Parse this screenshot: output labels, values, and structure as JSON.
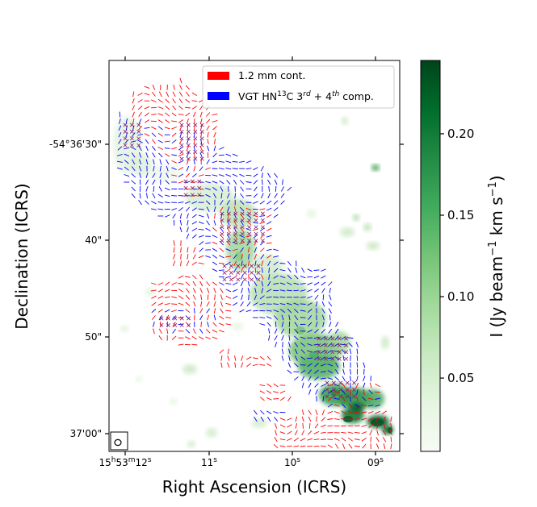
{
  "chart_data": {
    "type": "heatmap",
    "title": "",
    "xlabel": "Right Ascension (ICRS)",
    "ylabel": "Declination (ICRS)",
    "x_ticks": [
      {
        "pre": "15",
        "h": "h",
        "mid": "53",
        "m": "m",
        "post": "12",
        "s": "s"
      },
      {
        "pre": "",
        "h": "",
        "mid": "",
        "m": "",
        "post": "11",
        "s": "s"
      },
      {
        "pre": "",
        "h": "",
        "mid": "",
        "m": "",
        "post": "10",
        "s": "s"
      },
      {
        "pre": "",
        "h": "",
        "mid": "",
        "m": "",
        "post": "09",
        "s": "s"
      }
    ],
    "y_ticks": [
      "-54°36'30\"",
      "40\"",
      "50\"",
      "37'00\""
    ],
    "colorbar": {
      "label_main": "I (Jy beam",
      "label_exp1": "−1",
      "label_mid": " km s",
      "label_exp2": "−1",
      "label_end": ")",
      "ticks": [
        "0.05",
        "0.10",
        "0.15",
        "0.20"
      ],
      "tick_values": [
        0.05,
        0.1,
        0.15,
        0.2
      ],
      "range": [
        0.005,
        0.245
      ],
      "colormap": "Greens",
      "color_low": "#f7fcf5",
      "color_high": "#00441b"
    },
    "legend": {
      "placement": "top-right",
      "entries": [
        {
          "label": "1.2 mm cont.",
          "color": "#ff0000"
        },
        {
          "pre": "VGT HN",
          "sup1": "13",
          "mid": "C 3",
          "sup2": "rd",
          "mid2": " + 4",
          "sup3": "th",
          "post": " comp.",
          "color": "#0000ff"
        }
      ]
    },
    "series": [
      {
        "name": "1.2 mm cont.",
        "color": "#ff0000"
      },
      {
        "name": "VGT HN13C 3rd + 4th comp.",
        "color": "#0000ff"
      }
    ],
    "beam_marker": "ellipse",
    "grid": false
  }
}
